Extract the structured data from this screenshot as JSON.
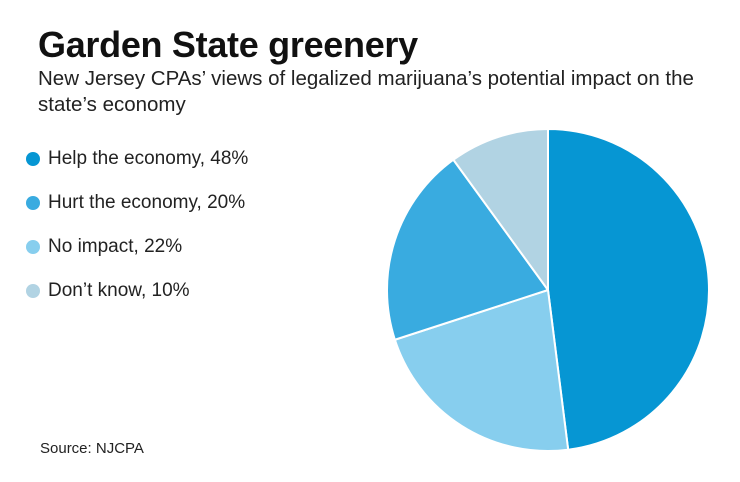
{
  "title": "Garden State greenery",
  "subtitle": "New Jersey CPAs’ views of legalized marijuana’s potential impact on the state’s economy",
  "legend": [
    {
      "label": "Help the economy, 48%",
      "color": "#0696d3"
    },
    {
      "label": "Hurt the economy, 20%",
      "color": "#39abe0"
    },
    {
      "label": "No impact, 22%",
      "color": "#87ceee"
    },
    {
      "label": "Don’t know, 10%",
      "color": "#b1d3e3"
    }
  ],
  "source": "Source: NJCPA",
  "chart_data": {
    "type": "pie",
    "slices": [
      {
        "label": "Help the economy",
        "value": 48,
        "color": "#0696d3"
      },
      {
        "label": "No impact",
        "value": 22,
        "color": "#87ceee"
      },
      {
        "label": "Hurt the economy",
        "value": 20,
        "color": "#39abe0"
      },
      {
        "label": "Don’t know",
        "value": 10,
        "color": "#b1d3e3"
      }
    ],
    "title": "Garden State greenery",
    "legend": "left"
  }
}
